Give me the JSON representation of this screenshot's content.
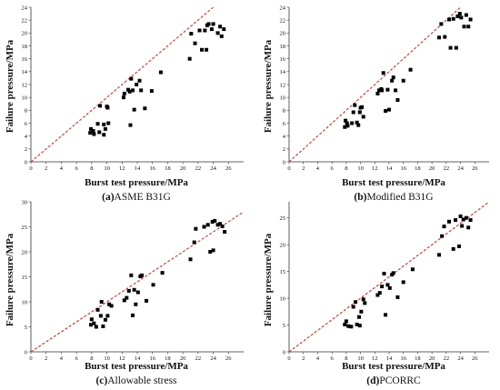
{
  "colors": {
    "points": "#000000",
    "reference_line": "#c0392b",
    "axes": "#333333"
  },
  "chart_data": [
    {
      "type": "scatter",
      "caption_letter": "(a)",
      "caption_text": "ASME B31G",
      "xlabel": "Burst test pressure/MPa",
      "ylabel": "Failure pressure/MPa",
      "xlim": [
        0,
        28
      ],
      "ylim": [
        0,
        24
      ],
      "xticks": [
        0,
        2,
        4,
        6,
        8,
        10,
        12,
        14,
        16,
        18,
        20,
        22,
        24,
        26
      ],
      "yticks": [
        0,
        2,
        4,
        6,
        8,
        10,
        12,
        14,
        16,
        18,
        20,
        22,
        24
      ],
      "reference_line": "y=x dashed",
      "points": [
        [
          7.8,
          4.5
        ],
        [
          7.9,
          5.1
        ],
        [
          8.2,
          4.8
        ],
        [
          8.3,
          4.3
        ],
        [
          8.8,
          5.9
        ],
        [
          9.0,
          4.6
        ],
        [
          9.1,
          8.7
        ],
        [
          9.6,
          5.8
        ],
        [
          9.6,
          4.2
        ],
        [
          9.8,
          5.1
        ],
        [
          10.0,
          8.6
        ],
        [
          10.1,
          8.4
        ],
        [
          10.2,
          6.0
        ],
        [
          12.2,
          10.0
        ],
        [
          12.3,
          10.6
        ],
        [
          12.8,
          11.2
        ],
        [
          13.0,
          10.9
        ],
        [
          13.1,
          5.7
        ],
        [
          13.2,
          12.9
        ],
        [
          13.4,
          11.1
        ],
        [
          13.6,
          8.1
        ],
        [
          13.9,
          12.0
        ],
        [
          14.3,
          12.6
        ],
        [
          14.5,
          11.1
        ],
        [
          15.0,
          8.3
        ],
        [
          15.9,
          11.0
        ],
        [
          17.1,
          13.9
        ],
        [
          20.9,
          16.0
        ],
        [
          21.1,
          19.9
        ],
        [
          21.6,
          18.4
        ],
        [
          22.2,
          20.4
        ],
        [
          22.5,
          17.4
        ],
        [
          22.9,
          20.4
        ],
        [
          23.1,
          17.4
        ],
        [
          23.2,
          21.2
        ],
        [
          23.4,
          21.4
        ],
        [
          23.8,
          20.6
        ],
        [
          24.0,
          21.4
        ],
        [
          24.6,
          20.0
        ],
        [
          24.9,
          21.0
        ],
        [
          25.1,
          19.5
        ],
        [
          25.4,
          20.6
        ]
      ]
    },
    {
      "type": "scatter",
      "caption_letter": "(b)",
      "caption_text": "Modified B31G",
      "xlabel": "Burst test pressure/MPa",
      "ylabel": "Failure pressure/MPa",
      "xlim": [
        0,
        28
      ],
      "ylim": [
        0,
        24
      ],
      "xticks": [
        0,
        2,
        4,
        6,
        8,
        10,
        12,
        14,
        16,
        18,
        20,
        22,
        24,
        26
      ],
      "yticks": [
        0,
        2,
        4,
        6,
        8,
        10,
        12,
        14,
        16,
        18,
        20,
        22,
        24
      ],
      "reference_line": "y=x dashed",
      "points": [
        [
          7.8,
          5.4
        ],
        [
          7.9,
          6.4
        ],
        [
          8.1,
          6.0
        ],
        [
          8.2,
          5.6
        ],
        [
          8.8,
          6.0
        ],
        [
          9.0,
          7.7
        ],
        [
          9.2,
          8.8
        ],
        [
          9.5,
          6.1
        ],
        [
          9.7,
          5.7
        ],
        [
          9.9,
          7.7
        ],
        [
          10.0,
          8.4
        ],
        [
          10.2,
          8.5
        ],
        [
          10.4,
          7.0
        ],
        [
          12.4,
          10.6
        ],
        [
          12.6,
          11.1
        ],
        [
          12.9,
          11.3
        ],
        [
          13.0,
          11.1
        ],
        [
          13.2,
          13.8
        ],
        [
          13.5,
          7.9
        ],
        [
          13.8,
          11.2
        ],
        [
          14.0,
          8.1
        ],
        [
          14.4,
          12.6
        ],
        [
          14.6,
          13.1
        ],
        [
          14.9,
          11.1
        ],
        [
          15.2,
          9.6
        ],
        [
          16.0,
          12.6
        ],
        [
          17.0,
          14.3
        ],
        [
          21.0,
          19.3
        ],
        [
          21.3,
          21.4
        ],
        [
          21.8,
          19.4
        ],
        [
          22.4,
          22.1
        ],
        [
          22.6,
          17.7
        ],
        [
          23.0,
          22.2
        ],
        [
          23.4,
          17.7
        ],
        [
          23.6,
          22.6
        ],
        [
          23.9,
          23.0
        ],
        [
          24.1,
          22.4
        ],
        [
          24.5,
          21.0
        ],
        [
          24.8,
          22.8
        ],
        [
          25.1,
          21.0
        ],
        [
          25.4,
          22.1
        ]
      ]
    },
    {
      "type": "scatter",
      "caption_letter": "(c)",
      "caption_text": "Allowable stress",
      "xlabel": "Burst test pressure/MPa",
      "ylabel": "Failure pressure/MPa",
      "xlim": [
        0,
        28
      ],
      "ylim": [
        0,
        30
      ],
      "xticks": [
        0,
        2,
        4,
        6,
        8,
        10,
        12,
        14,
        16,
        18,
        20,
        22,
        24,
        26
      ],
      "yticks": [
        0,
        5,
        10,
        15,
        20,
        25,
        30
      ],
      "reference_line": "y=x dashed",
      "points": [
        [
          7.9,
          5.4
        ],
        [
          8.0,
          6.5
        ],
        [
          8.3,
          5.7
        ],
        [
          8.6,
          5.0
        ],
        [
          8.8,
          8.4
        ],
        [
          9.2,
          7.2
        ],
        [
          9.3,
          10.0
        ],
        [
          9.5,
          5.1
        ],
        [
          9.8,
          6.4
        ],
        [
          10.1,
          7.2
        ],
        [
          10.3,
          9.5
        ],
        [
          10.6,
          9.2
        ],
        [
          12.3,
          10.3
        ],
        [
          12.6,
          10.8
        ],
        [
          12.9,
          12.2
        ],
        [
          13.2,
          15.3
        ],
        [
          13.4,
          7.3
        ],
        [
          13.6,
          12.4
        ],
        [
          13.8,
          9.5
        ],
        [
          14.1,
          11.9
        ],
        [
          14.4,
          15.1
        ],
        [
          14.6,
          15.3
        ],
        [
          15.2,
          10.2
        ],
        [
          16.1,
          13.4
        ],
        [
          17.3,
          15.8
        ],
        [
          21.0,
          18.5
        ],
        [
          21.5,
          21.9
        ],
        [
          21.7,
          24.6
        ],
        [
          22.8,
          25.0
        ],
        [
          23.3,
          25.4
        ],
        [
          23.6,
          20.0
        ],
        [
          23.9,
          26.0
        ],
        [
          24.2,
          26.2
        ],
        [
          24.6,
          25.4
        ],
        [
          24.9,
          25.6
        ],
        [
          25.2,
          25.1
        ],
        [
          25.5,
          24.0
        ],
        [
          24.0,
          20.3
        ]
      ]
    },
    {
      "type": "scatter",
      "caption_letter": "(d)",
      "caption_text": "PCORRC",
      "xlabel": "Burst test pressure/MPa",
      "ylabel": "Failure pressure/MPa",
      "xlim": [
        0,
        28
      ],
      "ylim": [
        0,
        28
      ],
      "xticks": [
        0,
        2,
        4,
        6,
        8,
        10,
        12,
        14,
        16,
        18,
        20,
        22,
        24,
        26
      ],
      "yticks": [
        0,
        5,
        10,
        15,
        20,
        25
      ],
      "reference_line": "y=x dashed",
      "points": [
        [
          7.8,
          5.1
        ],
        [
          8.0,
          5.7
        ],
        [
          8.3,
          4.8
        ],
        [
          8.7,
          4.7
        ],
        [
          9.0,
          8.4
        ],
        [
          9.3,
          9.3
        ],
        [
          9.5,
          5.1
        ],
        [
          9.8,
          6.5
        ],
        [
          9.9,
          4.9
        ],
        [
          10.1,
          7.5
        ],
        [
          10.4,
          9.8
        ],
        [
          10.6,
          9.1
        ],
        [
          12.4,
          10.6
        ],
        [
          12.7,
          11.0
        ],
        [
          13.0,
          12.2
        ],
        [
          13.3,
          14.6
        ],
        [
          13.5,
          6.9
        ],
        [
          13.8,
          12.5
        ],
        [
          14.1,
          11.9
        ],
        [
          14.4,
          14.4
        ],
        [
          14.6,
          14.7
        ],
        [
          15.2,
          10.2
        ],
        [
          16.0,
          13.0
        ],
        [
          17.3,
          15.4
        ],
        [
          21.0,
          18.1
        ],
        [
          21.4,
          21.6
        ],
        [
          21.7,
          23.4
        ],
        [
          22.4,
          24.3
        ],
        [
          23.0,
          19.2
        ],
        [
          23.3,
          24.6
        ],
        [
          23.8,
          19.7
        ],
        [
          24.0,
          25.3
        ],
        [
          24.4,
          24.7
        ],
        [
          24.8,
          25.0
        ],
        [
          25.1,
          23.2
        ],
        [
          25.4,
          24.6
        ],
        [
          24.2,
          23.5
        ]
      ]
    }
  ]
}
